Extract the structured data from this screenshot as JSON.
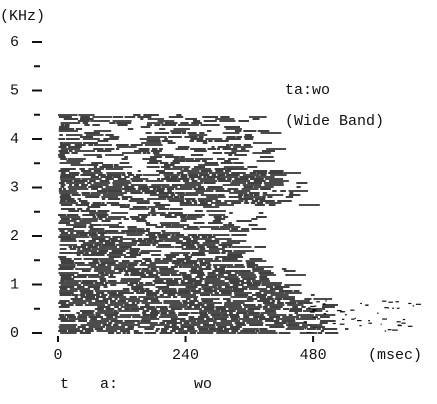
{
  "chart_data": {
    "type": "spectrogram",
    "y_label": "(KHz)",
    "x_label": "(msec)",
    "annotations": [
      "ta:wo",
      "(Wide Band)"
    ],
    "segments": [
      "t",
      "a:",
      "wo"
    ],
    "xlim": [
      0,
      700
    ],
    "xticks": [
      0,
      240,
      480
    ],
    "ylim": [
      0,
      6
    ],
    "yticks": [
      0,
      1,
      2,
      3,
      4,
      5,
      6
    ],
    "y_minor_ticks": [
      0.5,
      1.5,
      2.5,
      3.5,
      4.5,
      5.5
    ],
    "color": "#111111"
  }
}
